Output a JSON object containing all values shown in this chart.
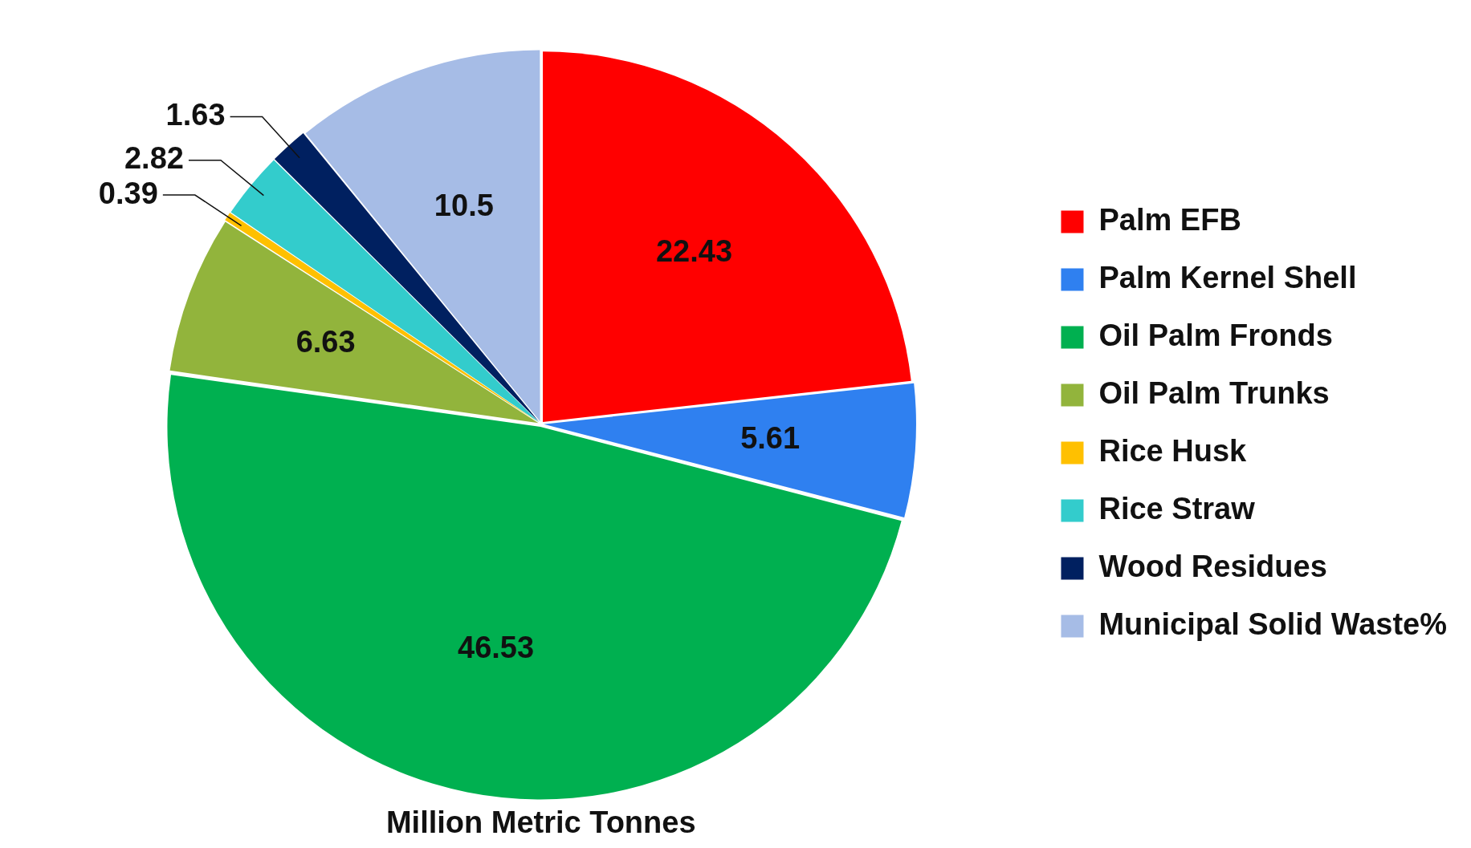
{
  "chart_data": {
    "type": "pie",
    "title": "Million Metric Tonnes",
    "categories": [
      "Palm EFB",
      "Palm Kernel Shell",
      "Oil Palm Fronds",
      "Oil Palm Trunks",
      "Rice Husk",
      "Rice Straw",
      "Wood Residues",
      "Municipal Solid Waste%"
    ],
    "values": [
      22.43,
      5.61,
      46.53,
      6.63,
      0.39,
      2.82,
      1.63,
      10.5
    ],
    "colors": [
      "#ff0000",
      "#2f80f0",
      "#00b050",
      "#92b43c",
      "#ffc000",
      "#33cccc",
      "#002060",
      "#a6bce6"
    ],
    "data_labels": true,
    "legend": "right"
  }
}
